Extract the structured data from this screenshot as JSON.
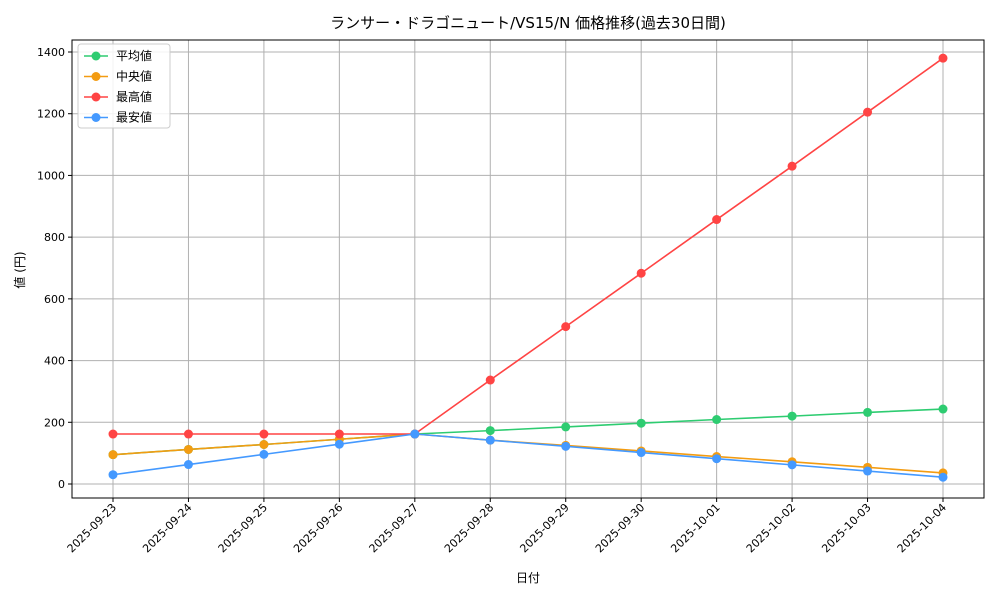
{
  "chart_data": {
    "type": "line",
    "title": "ランサー・ドラゴニュート/VS15/N 価格推移(過去30日間)",
    "xlabel": "日付",
    "ylabel": "値 (円)",
    "ylim": [
      -45,
      1450
    ],
    "yticks": [
      0,
      200,
      400,
      600,
      800,
      1000,
      1200,
      1400
    ],
    "grid": true,
    "legend_position": "top-left",
    "categories": [
      "2025-09-23",
      "2025-09-24",
      "2025-09-25",
      "2025-09-26",
      "2025-09-27",
      "2025-09-28",
      "2025-09-29",
      "2025-09-30",
      "2025-10-01",
      "2025-10-02",
      "2025-10-03",
      "2025-10-04"
    ],
    "series": [
      {
        "name": "平均値",
        "color": "#2ecc71",
        "values": [
          95,
          112,
          128,
          145,
          162,
          173,
          185,
          197,
          209,
          220,
          232,
          243
        ]
      },
      {
        "name": "中央値",
        "color": "#f39c12",
        "values": [
          95,
          112,
          128,
          145,
          162,
          142,
          125,
          107,
          89,
          72,
          54,
          36
        ]
      },
      {
        "name": "最高値",
        "color": "#ff4444",
        "values": [
          162,
          162,
          162,
          162,
          162,
          337,
          510,
          683,
          857,
          1030,
          1205,
          1380
        ]
      },
      {
        "name": "最安値",
        "color": "#4499ff",
        "values": [
          30,
          63,
          96,
          129,
          162,
          142,
          122,
          102,
          82,
          62,
          42,
          22
        ]
      }
    ]
  }
}
